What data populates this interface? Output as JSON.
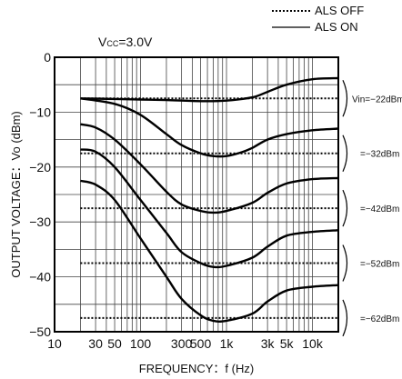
{
  "chart_data": {
    "type": "line",
    "title": "",
    "condition_prefix": "V",
    "condition_sub": "CC",
    "condition_value": "=3.0V",
    "xlabel": "FREQUENCY：f (Hz)",
    "ylabel": "OUTPUT VOLTAGE：Vo (dBm)",
    "xscale": "log",
    "xlim": [
      10,
      20000
    ],
    "ylim": [
      -50,
      0
    ],
    "x_ticks": [
      {
        "v": 10,
        "label": "10"
      },
      {
        "v": 30,
        "label": "30"
      },
      {
        "v": 50,
        "label": "50"
      },
      {
        "v": 100,
        "label": "100"
      },
      {
        "v": 300,
        "label": "300"
      },
      {
        "v": 500,
        "label": "500"
      },
      {
        "v": 1000,
        "label": "1k"
      },
      {
        "v": 3000,
        "label": "3k"
      },
      {
        "v": 5000,
        "label": "5k"
      },
      {
        "v": 10000,
        "label": "10k"
      }
    ],
    "y_ticks": [
      {
        "v": 0,
        "label": "0"
      },
      {
        "v": -10,
        "label": "−10"
      },
      {
        "v": -20,
        "label": "−20"
      },
      {
        "v": -30,
        "label": "−30"
      },
      {
        "v": -40,
        "label": "−40"
      },
      {
        "v": -50,
        "label": "−50"
      }
    ],
    "grid": true,
    "legend_position": "top-right",
    "legend": [
      {
        "label": "ALS OFF",
        "style": "dotted"
      },
      {
        "label": "ALS ON",
        "style": "solid"
      }
    ],
    "vin_labels": [
      {
        "text": "Vin=−22dBm",
        "y": -7.5
      },
      {
        "text": "=−32dBm",
        "y": -17.5
      },
      {
        "text": "=−42dBm",
        "y": -27.5
      },
      {
        "text": "=−52dBm",
        "y": -37.5
      },
      {
        "text": "=−62dBm",
        "y": -47.5
      }
    ],
    "series": [
      {
        "style": "solid",
        "x": [
          20,
          50,
          100,
          200,
          500,
          1000,
          2000,
          3000,
          5000,
          10000,
          20000
        ],
        "y": [
          -7.5,
          -7.6,
          -7.7,
          -7.8,
          -8,
          -7.9,
          -7.3,
          -6.3,
          -5,
          -4,
          -3.8
        ]
      },
      {
        "style": "dotted",
        "x": [
          20,
          20000
        ],
        "y": [
          -7.5,
          -7.5
        ]
      },
      {
        "style": "solid",
        "x": [
          20,
          50,
          100,
          200,
          300,
          500,
          700,
          1000,
          1500,
          2000,
          3000,
          5000,
          10000,
          20000
        ],
        "y": [
          -7.5,
          -8.5,
          -10.5,
          -14,
          -16,
          -17.5,
          -18,
          -18,
          -17.3,
          -16.5,
          -15,
          -14,
          -13.3,
          -13
        ]
      },
      {
        "style": "dotted",
        "x": [
          20,
          20000
        ],
        "y": [
          -17.5,
          -17.5
        ]
      },
      {
        "style": "solid",
        "x": [
          20,
          30,
          50,
          100,
          200,
          300,
          500,
          700,
          1000,
          2000,
          3000,
          5000,
          10000,
          20000
        ],
        "y": [
          -12.2,
          -12.8,
          -15,
          -19.5,
          -24.5,
          -26.8,
          -28,
          -28.3,
          -28,
          -26.5,
          -24.7,
          -23,
          -22.2,
          -22
        ]
      },
      {
        "style": "dotted",
        "x": [
          20,
          20000
        ],
        "y": [
          -27.5,
          -27.5
        ]
      },
      {
        "style": "solid",
        "x": [
          20,
          30,
          50,
          100,
          200,
          300,
          500,
          700,
          1000,
          2000,
          3000,
          5000,
          10000,
          20000
        ],
        "y": [
          -16.8,
          -17.2,
          -20,
          -26,
          -32,
          -35.5,
          -37.5,
          -38.2,
          -38,
          -36.5,
          -34.5,
          -32.5,
          -31.8,
          -31.5
        ]
      },
      {
        "style": "dotted",
        "x": [
          20,
          20000
        ],
        "y": [
          -37.5,
          -37.5
        ]
      },
      {
        "style": "solid",
        "x": [
          20,
          30,
          50,
          100,
          200,
          300,
          500,
          700,
          1000,
          2000,
          3000,
          5000,
          10000,
          20000
        ],
        "y": [
          -22.5,
          -23.2,
          -26,
          -33,
          -40,
          -44,
          -47,
          -48,
          -48,
          -46.7,
          -44.5,
          -42.5,
          -41.8,
          -41.5
        ]
      },
      {
        "style": "dotted",
        "x": [
          20,
          20000
        ],
        "y": [
          -47.5,
          -47.5
        ]
      }
    ]
  }
}
